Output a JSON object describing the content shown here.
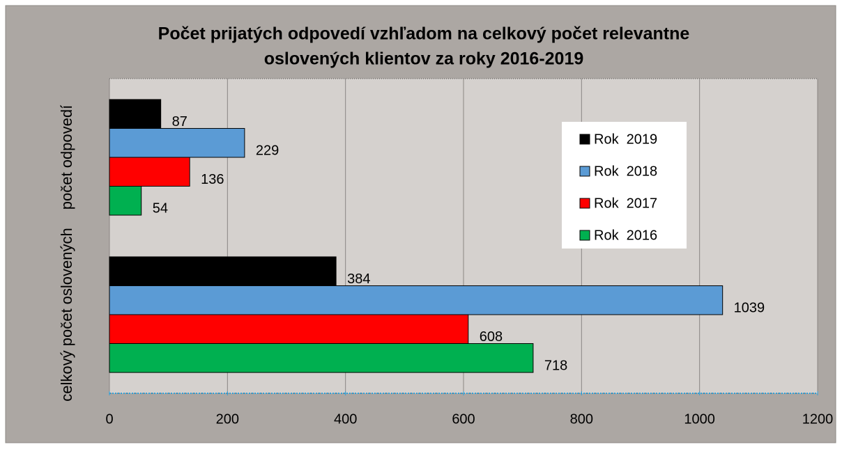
{
  "chart_data": {
    "type": "barh",
    "title": [
      "Počet prijatých odpovedí vzhľadom na celkový počet relevantne",
      "oslovených klientov za roky 2016-2019"
    ],
    "categories": [
      "počet odpovedí",
      "celkový počet oslovených"
    ],
    "series": [
      {
        "name": "Rok  2019",
        "color": "#000000",
        "label_color": "#000000",
        "values": [
          87,
          384
        ]
      },
      {
        "name": "Rok  2018",
        "color": "#5b9bd5",
        "label_color": "#44546a",
        "values": [
          229,
          1039
        ]
      },
      {
        "name": "Rok  2017",
        "color": "#ff0000",
        "label_color": "#ff0000",
        "values": [
          136,
          608
        ]
      },
      {
        "name": "Rok  2016",
        "color": "#00b050",
        "label_color": "#00b050",
        "values": [
          54,
          718
        ]
      }
    ],
    "xlim": [
      0,
      1200
    ],
    "xticks": [
      0,
      200,
      400,
      600,
      800,
      1000,
      1200
    ],
    "grid": true,
    "legend": "right"
  }
}
